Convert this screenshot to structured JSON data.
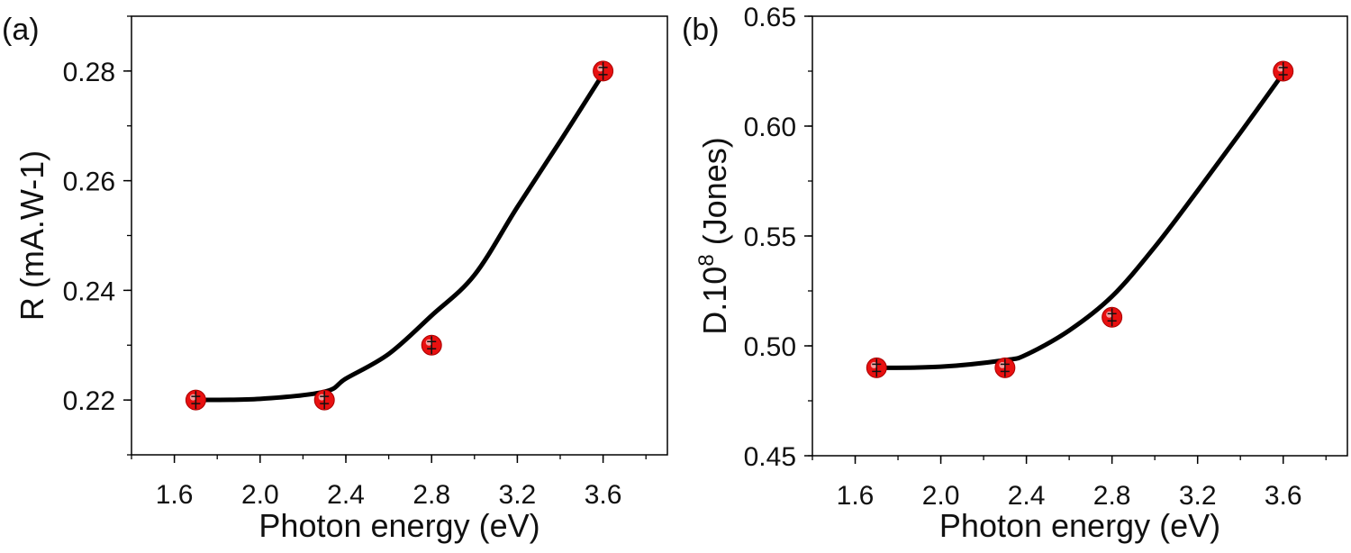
{
  "chart_data": [
    {
      "type": "scatter",
      "panel_label": "(a)",
      "xlabel": "Photon energy (eV)",
      "ylabel": "R (mA.W-1)",
      "ylabel_parts": [
        "R (mA.W-1)",
        "",
        ""
      ],
      "xlim": [
        1.4,
        3.9
      ],
      "ylim": [
        0.21,
        0.29
      ],
      "xticks": [
        "1.6",
        "2.0",
        "2.4",
        "2.8",
        "3.2",
        "3.6"
      ],
      "yticks": [
        "0.22",
        "0.24",
        "0.26",
        "0.28"
      ],
      "x_minor_step": 0.2,
      "y_minor_step": 0.01,
      "grid": false,
      "series": [
        {
          "name": "data",
          "x": [
            1.7,
            2.3,
            2.8,
            3.6
          ],
          "y": [
            0.22,
            0.22,
            0.23,
            0.28
          ],
          "color": "#e81010"
        },
        {
          "name": "fit",
          "x": [
            1.7,
            2.0,
            2.3,
            2.4,
            2.6,
            2.8,
            3.0,
            3.2,
            3.4,
            3.6
          ],
          "y": [
            0.22,
            0.2202,
            0.2215,
            0.2239,
            0.2284,
            0.2354,
            0.2428,
            0.2552,
            0.2672,
            0.2795
          ],
          "color": "#000000"
        }
      ]
    },
    {
      "type": "scatter",
      "panel_label": "(b)",
      "xlabel": "Photon energy (eV)",
      "ylabel": "D.10^8 (Jones)",
      "ylabel_parts": [
        "D.10",
        "8",
        " (Jones)"
      ],
      "xlim": [
        1.4,
        3.9
      ],
      "ylim": [
        0.45,
        0.65
      ],
      "xticks": [
        "1.6",
        "2.0",
        "2.4",
        "2.8",
        "3.2",
        "3.6"
      ],
      "yticks": [
        "0.45",
        "0.50",
        "0.55",
        "0.60",
        "0.65"
      ],
      "x_minor_step": 0.2,
      "y_minor_step": 0.025,
      "grid": false,
      "series": [
        {
          "name": "data",
          "x": [
            1.7,
            2.3,
            2.8,
            3.6
          ],
          "y": [
            0.49,
            0.49,
            0.513,
            0.625
          ],
          "color": "#e81010"
        },
        {
          "name": "fit",
          "x": [
            1.7,
            2.0,
            2.3,
            2.4,
            2.6,
            2.8,
            3.0,
            3.2,
            3.4,
            3.6
          ],
          "y": [
            0.49,
            0.4905,
            0.4935,
            0.496,
            0.507,
            0.5225,
            0.545,
            0.5706,
            0.597,
            0.624
          ],
          "color": "#000000"
        }
      ]
    }
  ]
}
